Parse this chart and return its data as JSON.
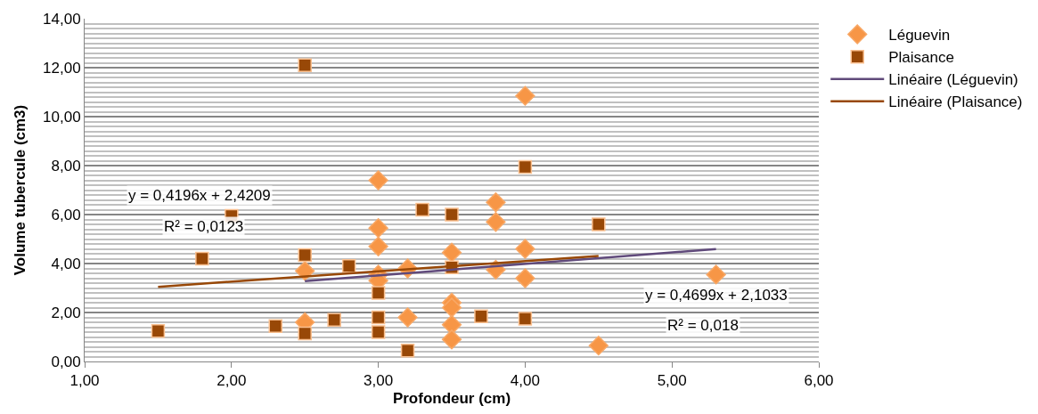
{
  "chart_data": {
    "type": "scatter",
    "xlabel": "Profondeur (cm)",
    "ylabel": "Volume tubercule (cm3)",
    "xlim": [
      1,
      6
    ],
    "xticks": [
      {
        "value": 1,
        "label": "1,00"
      },
      {
        "value": 2,
        "label": "2,00"
      },
      {
        "value": 3,
        "label": "3,00"
      },
      {
        "value": 4,
        "label": "4,00"
      },
      {
        "value": 5,
        "label": "5,00"
      },
      {
        "value": 6,
        "label": "6,00"
      }
    ],
    "ylim": [
      0,
      14
    ],
    "yticks": [
      {
        "value": 0,
        "label": "0,00"
      },
      {
        "value": 2,
        "label": "2,00"
      },
      {
        "value": 4,
        "label": "4,00"
      },
      {
        "value": 6,
        "label": "6,00"
      },
      {
        "value": 8,
        "label": "8,00"
      },
      {
        "value": 10,
        "label": "10,00"
      },
      {
        "value": 12,
        "label": "12,00"
      },
      {
        "value": 14,
        "label": "14,00"
      }
    ],
    "grid": "y",
    "legend": "right",
    "series": [
      {
        "name": "Léguevin",
        "marker": "diamond",
        "color": "#f79646",
        "x": [
          2.5,
          2.5,
          3.0,
          3.0,
          3.0,
          3.0,
          3.0,
          3.2,
          3.2,
          3.5,
          3.5,
          3.5,
          3.5,
          3.5,
          3.8,
          3.8,
          3.8,
          4.0,
          4.0,
          4.0,
          4.5,
          5.3
        ],
        "values": [
          3.7,
          1.6,
          7.4,
          5.45,
          4.7,
          3.55,
          3.3,
          3.8,
          1.8,
          4.45,
          2.4,
          2.2,
          1.5,
          0.9,
          6.5,
          5.7,
          3.75,
          10.85,
          4.6,
          3.4,
          0.65,
          3.55
        ]
      },
      {
        "name": "Plaisance",
        "marker": "square",
        "color": "#984807",
        "x": [
          1.5,
          1.8,
          2.0,
          2.3,
          2.5,
          2.5,
          2.5,
          2.7,
          2.8,
          3.0,
          3.0,
          3.0,
          3.2,
          3.3,
          3.5,
          3.5,
          3.7,
          4.0,
          4.0,
          4.5
        ],
        "values": [
          1.25,
          4.2,
          5.95,
          1.45,
          12.1,
          4.35,
          1.15,
          1.7,
          3.9,
          2.8,
          1.8,
          1.2,
          0.45,
          6.2,
          6.0,
          3.85,
          1.85,
          7.95,
          1.75,
          5.6
        ]
      },
      {
        "name": "Linéaire (Léguevin)",
        "type": "line",
        "marker": "none",
        "color": "#604a7b",
        "x": [
          2.5,
          5.3
        ],
        "values": [
          3.28,
          4.59
        ]
      },
      {
        "name": "Linéaire (Plaisance)",
        "type": "line",
        "marker": "none",
        "color": "#984807",
        "x": [
          1.5,
          4.5
        ],
        "values": [
          3.05,
          4.31
        ]
      }
    ],
    "annotations": [
      "y = 0,4196x + 2,4209",
      "R² = 0,0123",
      "y = 0,4699x + 2,1033",
      "R² = 0,018"
    ]
  }
}
